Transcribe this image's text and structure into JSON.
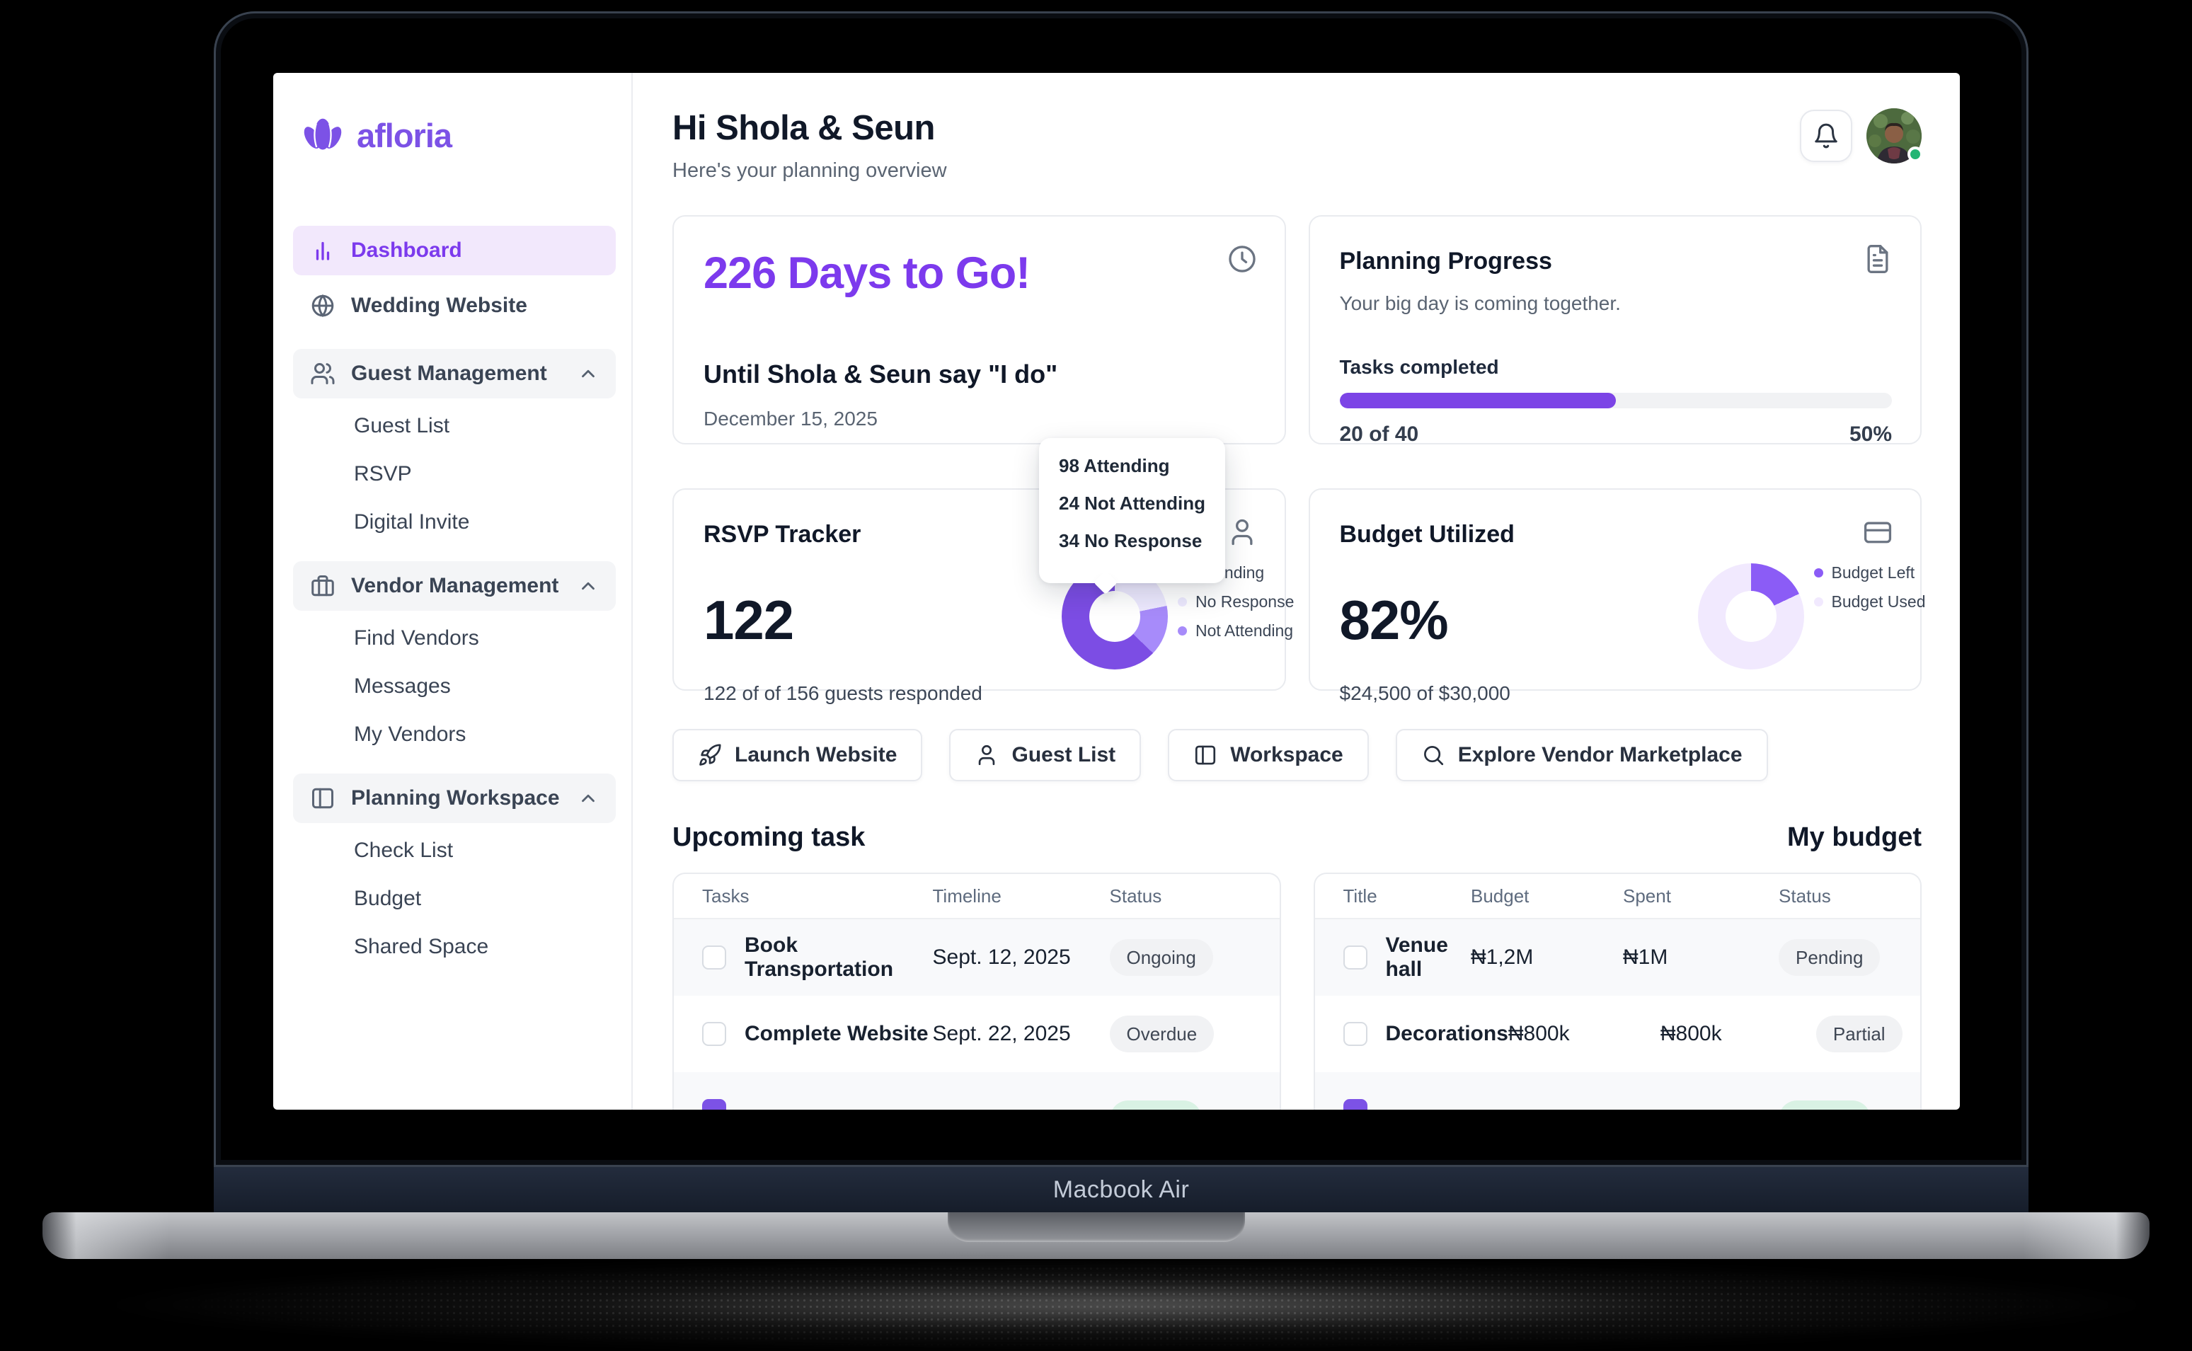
{
  "device": {
    "label": "Macbook Air"
  },
  "brand": {
    "name": "afloria",
    "color": "#7C52E6",
    "logo_icon": "flower-icon"
  },
  "colors": {
    "primary": "#7C3AED",
    "active_item_bg": "#F2E8FC",
    "progress_fill": "#7C44E6",
    "online_dot": "#22B573",
    "badge_bg": "#F1F2F4"
  },
  "sidebar": {
    "dashboard": "Dashboard",
    "wedding_website": "Wedding Website",
    "guest_management": "Guest Management",
    "guest_list": "Guest List",
    "rsvp": "RSVP",
    "digital_invite": "Digital Invite",
    "vendor_management": "Vendor Management",
    "find_vendors": "Find Vendors",
    "messages": "Messages",
    "my_vendors": "My Vendors",
    "planning_workspace": "Planning Workspace",
    "check_list": "Check List",
    "budget": "Budget",
    "shared_space": "Shared Space"
  },
  "header": {
    "greeting": "Hi Shola & Seun",
    "subtitle": "Here's your planning overview",
    "icons": [
      "bell-icon",
      "avatar"
    ]
  },
  "countdown_card": {
    "title": "226 Days to Go!",
    "subtitle": "Until Shola & Seun say \"I do\"",
    "date": "December 15, 2025",
    "icon": "clock-icon"
  },
  "progress_card": {
    "title": "Planning Progress",
    "subtitle": "Your big day is coming together.",
    "label": "Tasks completed",
    "completed_text": "20 of 40",
    "percent_text": "50%",
    "percent": 50,
    "icon": "document-icon"
  },
  "rsvp_card": {
    "title": "RSVP Tracker",
    "count": "122",
    "subtitle": "122 of of 156 guests responded",
    "icon": "person-icon",
    "tooltip_lines": [
      "98 Attending",
      "24 Not Attending",
      "34 No Response"
    ]
  },
  "budget_card": {
    "title": "Budget Utilized",
    "percent": "82%",
    "subtitle": "$24,500 of $30,000",
    "icon": "credit-card-icon"
  },
  "actions": {
    "launch_website": "Launch Website",
    "guest_list": "Guest List",
    "workspace": "Workspace",
    "explore_marketplace": "Explore Vendor Marketplace"
  },
  "tasks_section": {
    "heading": "Upcoming task",
    "columns": [
      "Tasks",
      "Timeline",
      "Status"
    ],
    "rows": [
      {
        "task": "Book Transportation",
        "timeline": "Sept. 12, 2025",
        "status": "Ongoing"
      },
      {
        "task": "Complete Website",
        "timeline": "Sept. 22, 2025",
        "status": "Overdue"
      }
    ]
  },
  "budget_section": {
    "heading": "My budget",
    "columns": [
      "Title",
      "Budget",
      "Spent",
      "Status"
    ],
    "rows": [
      {
        "title": "Venue hall",
        "budget": "₦1,2M",
        "spent": "₦1M",
        "status": "Pending"
      },
      {
        "title": "Decorations",
        "budget": "₦800k",
        "spent": "₦800k",
        "status": "Partial"
      }
    ]
  },
  "chart_data": [
    {
      "type": "pie",
      "title": "RSVP Tracker",
      "total_guests": 156,
      "responded": 122,
      "segments": [
        {
          "label": "No Response",
          "value": 34,
          "color": "#EDE9FE"
        },
        {
          "label": "Not Attending",
          "value": 24,
          "color": "#A78BFA"
        },
        {
          "label": "Attending",
          "value": 98,
          "color": "#7C4DE4"
        }
      ],
      "legend": [
        {
          "label": "Attending",
          "color": "#7C4DE4"
        },
        {
          "label": "No Response",
          "color": "#EDE9FE"
        },
        {
          "label": "Not Attending",
          "color": "#A78BFA"
        }
      ],
      "legend_position": "right"
    },
    {
      "type": "pie",
      "title": "Budget Utilized",
      "segments": [
        {
          "label": "Budget Left",
          "value": 18,
          "color": "#8B5CF6"
        },
        {
          "label": "Budget Used",
          "value": 82,
          "color": "#F1E9FE"
        }
      ],
      "legend": [
        {
          "label": "Budget Left",
          "color": "#8B5CF6"
        },
        {
          "label": "Budget Used",
          "color": "#F1E9FE"
        }
      ],
      "legend_position": "right"
    }
  ]
}
